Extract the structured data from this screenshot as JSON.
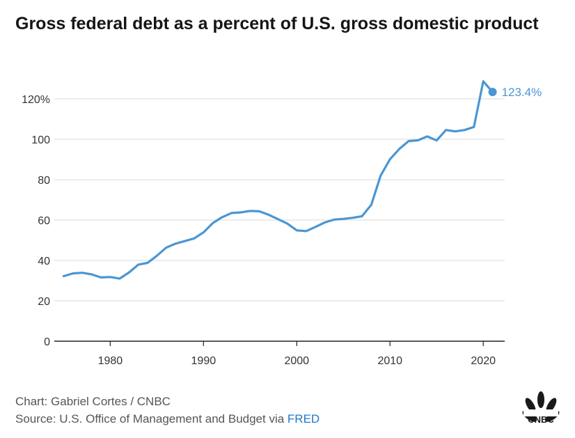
{
  "title": "Gross federal debt as a percent of U.S. gross domestic product",
  "credit": "Chart: Gabriel Cortes / CNBC",
  "source_prefix": "Source: U.S. Office of Management and Budget via",
  "source_link": "FRED",
  "logo_text": "CNBC",
  "colors": {
    "line": "#4a96d4",
    "grid": "#d9d9d9",
    "axis": "#222222",
    "text": "#333333",
    "link": "#1f77d0"
  },
  "chart_data": {
    "type": "line",
    "title": "Gross federal debt as a percent of U.S. gross domestic product",
    "xlabel": "",
    "ylabel": "",
    "xlim": [
      1974,
      2022.3
    ],
    "ylim": [
      0,
      130
    ],
    "yticks": [
      0,
      20,
      40,
      60,
      80,
      100,
      120
    ],
    "ytick_labels": [
      "0",
      "20",
      "40",
      "60",
      "80",
      "100",
      "120%"
    ],
    "xticks": [
      1980,
      1990,
      2000,
      2010,
      2020
    ],
    "xtick_labels": [
      "1980",
      "1990",
      "2000",
      "2010",
      "2020"
    ],
    "grid": true,
    "series": [
      {
        "x": [
          1975,
          1976,
          1977,
          1978,
          1979,
          1980,
          1981,
          1982,
          1983,
          1984,
          1985,
          1986,
          1987,
          1988,
          1989,
          1990,
          1991,
          1992,
          1993,
          1994,
          1995,
          1996,
          1997,
          1998,
          1999,
          2000,
          2001,
          2002,
          2003,
          2004,
          2005,
          2006,
          2007,
          2008,
          2009,
          2010,
          2011,
          2012,
          2013,
          2014,
          2015,
          2016,
          2017,
          2018,
          2019,
          2020,
          2021
        ],
        "values": [
          32.2,
          33.6,
          33.9,
          33.1,
          31.6,
          31.8,
          31.0,
          34.0,
          37.9,
          38.8,
          42.3,
          46.3,
          48.3,
          49.6,
          50.9,
          53.9,
          58.5,
          61.4,
          63.5,
          63.8,
          64.5,
          64.3,
          62.6,
          60.4,
          58.2,
          54.9,
          54.5,
          56.6,
          58.8,
          60.2,
          60.6,
          61.1,
          61.9,
          67.6,
          82.0,
          90.1,
          95.2,
          99.1,
          99.5,
          101.4,
          99.4,
          104.6,
          103.9,
          104.6,
          106.1,
          128.7,
          123.4
        ]
      }
    ],
    "annotations": [
      {
        "x": 2021,
        "y": 123.4,
        "text": "123.4%"
      }
    ]
  }
}
